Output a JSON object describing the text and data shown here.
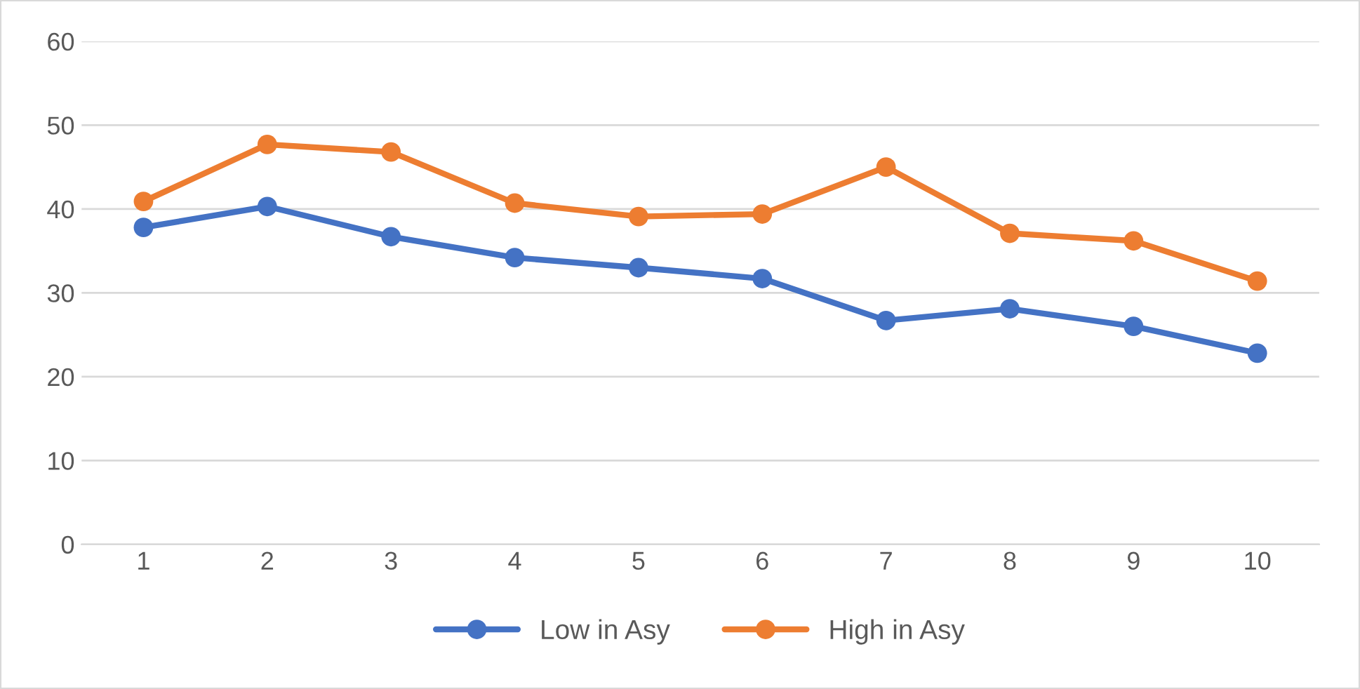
{
  "chart_data": {
    "type": "line",
    "categories": [
      "1",
      "2",
      "3",
      "4",
      "5",
      "6",
      "7",
      "8",
      "9",
      "10"
    ],
    "series": [
      {
        "name": "Low in Asy",
        "color": "#4472c4",
        "values": [
          37.8,
          40.3,
          36.7,
          34.2,
          33.0,
          31.7,
          26.7,
          28.1,
          26.0,
          22.8
        ]
      },
      {
        "name": "High in Asy",
        "color": "#ed7d31",
        "values": [
          40.9,
          47.7,
          46.8,
          40.7,
          39.1,
          39.4,
          45.0,
          37.1,
          36.2,
          31.4
        ]
      }
    ],
    "ylim": [
      0,
      60
    ],
    "yticks": [
      0,
      10,
      20,
      30,
      40,
      50,
      60
    ],
    "grid": "y",
    "legend": "bottom",
    "marker": "circle",
    "line_style": "solid"
  }
}
